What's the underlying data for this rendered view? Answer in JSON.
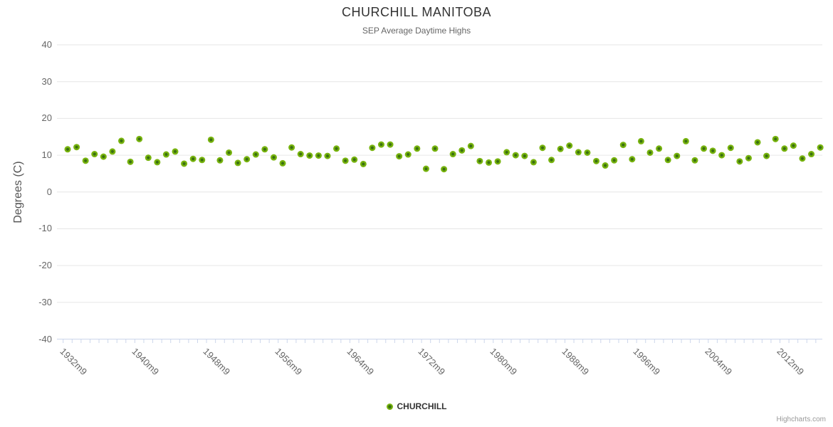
{
  "chart_data": {
    "type": "scatter",
    "title": "CHURCHILL MANITOBA",
    "subtitle": "SEP Average Daytime Highs",
    "ylabel": "Degrees (C)",
    "xlabel": "",
    "ylim": [
      -40,
      40
    ],
    "y_tick_interval": 10,
    "y_ticks": [
      -40,
      -30,
      -20,
      -10,
      0,
      10,
      20,
      30,
      40
    ],
    "grid": "horizontal",
    "legend_position": "bottom-center",
    "x_label_step": 8,
    "x_tick_labels_shown": [
      "1932m9",
      "1940m9",
      "1948m9",
      "1956m9",
      "1964m9",
      "1972m9",
      "1980m9",
      "1988m9",
      "1996m9",
      "2004m9",
      "2012m9"
    ],
    "categories": [
      "1932m9",
      "1933m9",
      "1934m9",
      "1935m9",
      "1936m9",
      "1937m9",
      "1938m9",
      "1939m9",
      "1940m9",
      "1941m9",
      "1942m9",
      "1943m9",
      "1944m9",
      "1945m9",
      "1946m9",
      "1947m9",
      "1948m9",
      "1949m9",
      "1950m9",
      "1951m9",
      "1952m9",
      "1953m9",
      "1954m9",
      "1955m9",
      "1956m9",
      "1957m9",
      "1958m9",
      "1959m9",
      "1960m9",
      "1961m9",
      "1962m9",
      "1963m9",
      "1964m9",
      "1965m9",
      "1966m9",
      "1967m9",
      "1968m9",
      "1969m9",
      "1970m9",
      "1971m9",
      "1972m9",
      "1973m9",
      "1974m9",
      "1975m9",
      "1976m9",
      "1977m9",
      "1978m9",
      "1979m9",
      "1980m9",
      "1981m9",
      "1982m9",
      "1983m9",
      "1984m9",
      "1985m9",
      "1986m9",
      "1987m9",
      "1988m9",
      "1989m9",
      "1990m9",
      "1991m9",
      "1992m9",
      "1993m9",
      "1994m9",
      "1995m9",
      "1996m9",
      "1997m9",
      "1998m9",
      "1999m9",
      "2000m9",
      "2001m9",
      "2002m9",
      "2003m9",
      "2004m9",
      "2005m9",
      "2006m9",
      "2007m9",
      "2008m9",
      "2009m9",
      "2010m9",
      "2011m9",
      "2012m9",
      "2013m9",
      "2014m9",
      "2015m9",
      "2016m9"
    ],
    "series": [
      {
        "name": "CHURCHILL",
        "values": [
          11.6,
          12.2,
          8.5,
          10.3,
          9.6,
          11.0,
          13.9,
          8.2,
          14.4,
          9.3,
          8.1,
          10.2,
          11.0,
          7.7,
          9.0,
          8.7,
          14.2,
          8.6,
          10.7,
          7.9,
          8.9,
          10.2,
          11.6,
          9.4,
          7.8,
          12.1,
          10.3,
          9.9,
          9.9,
          9.8,
          11.8,
          8.5,
          8.8,
          7.6,
          12.0,
          12.9,
          12.9,
          9.7,
          10.2,
          11.8,
          6.3,
          11.8,
          6.2,
          10.3,
          11.3,
          12.5,
          8.4,
          8.0,
          8.3,
          10.8,
          10.0,
          9.8,
          8.1,
          12.0,
          8.7,
          11.7,
          12.6,
          10.8,
          10.7,
          8.4,
          7.2,
          8.6,
          12.8,
          8.9,
          13.8,
          10.7,
          11.8,
          8.7,
          9.8,
          13.8,
          8.6,
          11.8,
          11.2,
          10.0,
          12.0,
          8.3,
          9.2,
          13.5,
          9.8,
          14.4,
          11.8,
          12.6,
          9.1,
          10.3,
          12.1
        ]
      }
    ],
    "colors": {
      "marker": "#77b30e",
      "marker_core": "#3a7010",
      "grid_line": "#e6e6e6",
      "axis_line": "#ccd6eb",
      "title_text": "#333333",
      "subtitle_text": "#666666",
      "axis_label_text": "#666666"
    }
  },
  "credit": "Highcharts.com"
}
